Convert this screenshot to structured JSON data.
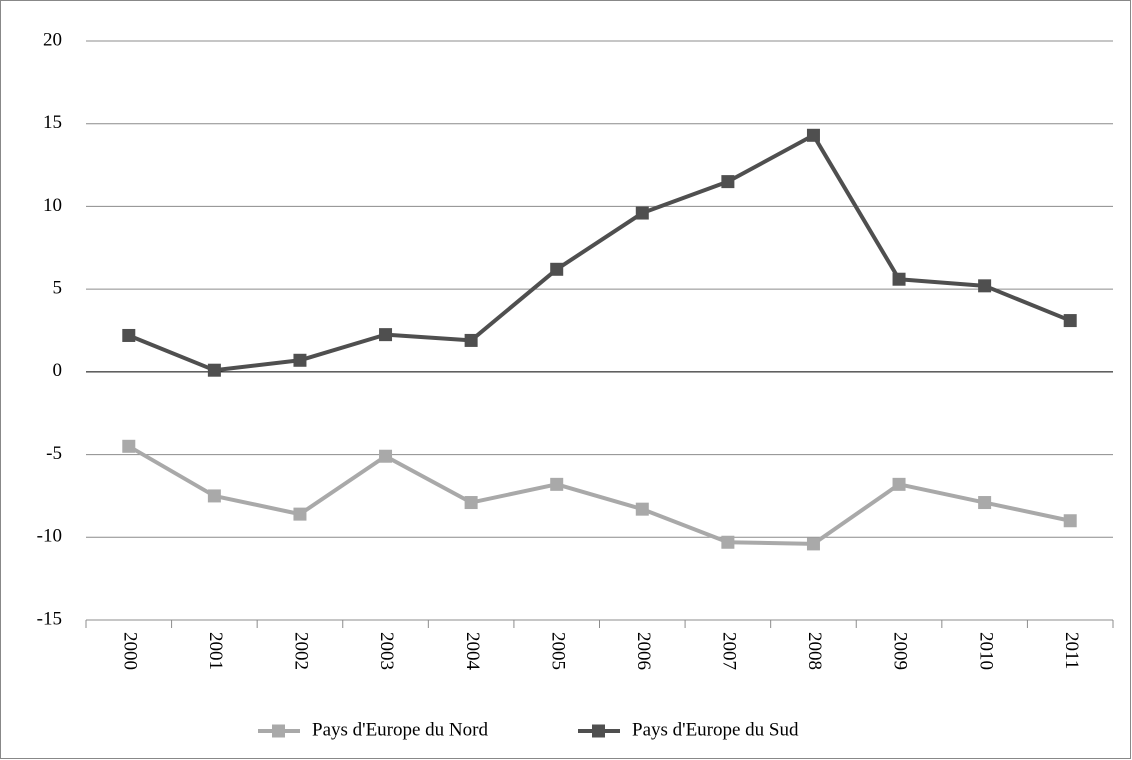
{
  "chart_data": {
    "type": "line",
    "categories": [
      "2000",
      "2001",
      "2002",
      "2003",
      "2004",
      "2005",
      "2006",
      "2007",
      "2008",
      "2009",
      "2010",
      "2011"
    ],
    "series": [
      {
        "name": "Pays d'Europe du Nord",
        "color": "#a9a9a9",
        "values": [
          -4.5,
          -7.5,
          -8.6,
          -5.1,
          -7.9,
          -6.8,
          -8.3,
          -10.3,
          -10.4,
          -6.8,
          -7.9,
          -9.0
        ]
      },
      {
        "name": "Pays d'Europe du Sud",
        "color": "#4f4f4f",
        "values": [
          2.2,
          0.1,
          0.7,
          2.25,
          1.9,
          6.2,
          9.6,
          11.5,
          14.3,
          5.6,
          5.2,
          3.1
        ]
      }
    ],
    "ylim": [
      -15,
      20
    ],
    "yticks": [
      -15,
      -10,
      -5,
      0,
      5,
      10,
      15,
      20
    ],
    "grid": true,
    "legend": "bottom"
  }
}
